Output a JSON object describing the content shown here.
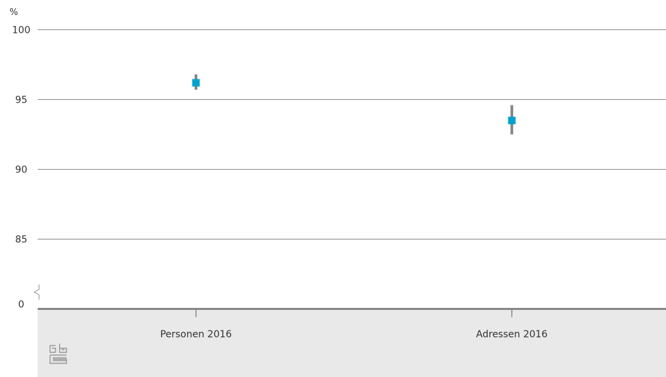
{
  "chart_data": {
    "type": "scatter",
    "unit": "%",
    "categories": [
      "Personen 2016",
      "Adressen 2016"
    ],
    "series": [
      {
        "values": [
          96.2,
          93.5
        ],
        "error_low": [
          95.7,
          92.5
        ],
        "error_high": [
          96.8,
          94.6
        ]
      }
    ],
    "yticks": [
      0,
      85,
      90,
      95,
      100
    ],
    "ylim": [
      0,
      100
    ],
    "axis_break": {
      "below": 85,
      "above": 0
    },
    "grid": true,
    "colors": {
      "marker": "#00a1cd",
      "errorbar": "#888888",
      "grid": "#888888",
      "axis": "#888888",
      "category_band": "#e9e9e9"
    }
  },
  "logo": {
    "icon": "cbs-logo-icon"
  }
}
